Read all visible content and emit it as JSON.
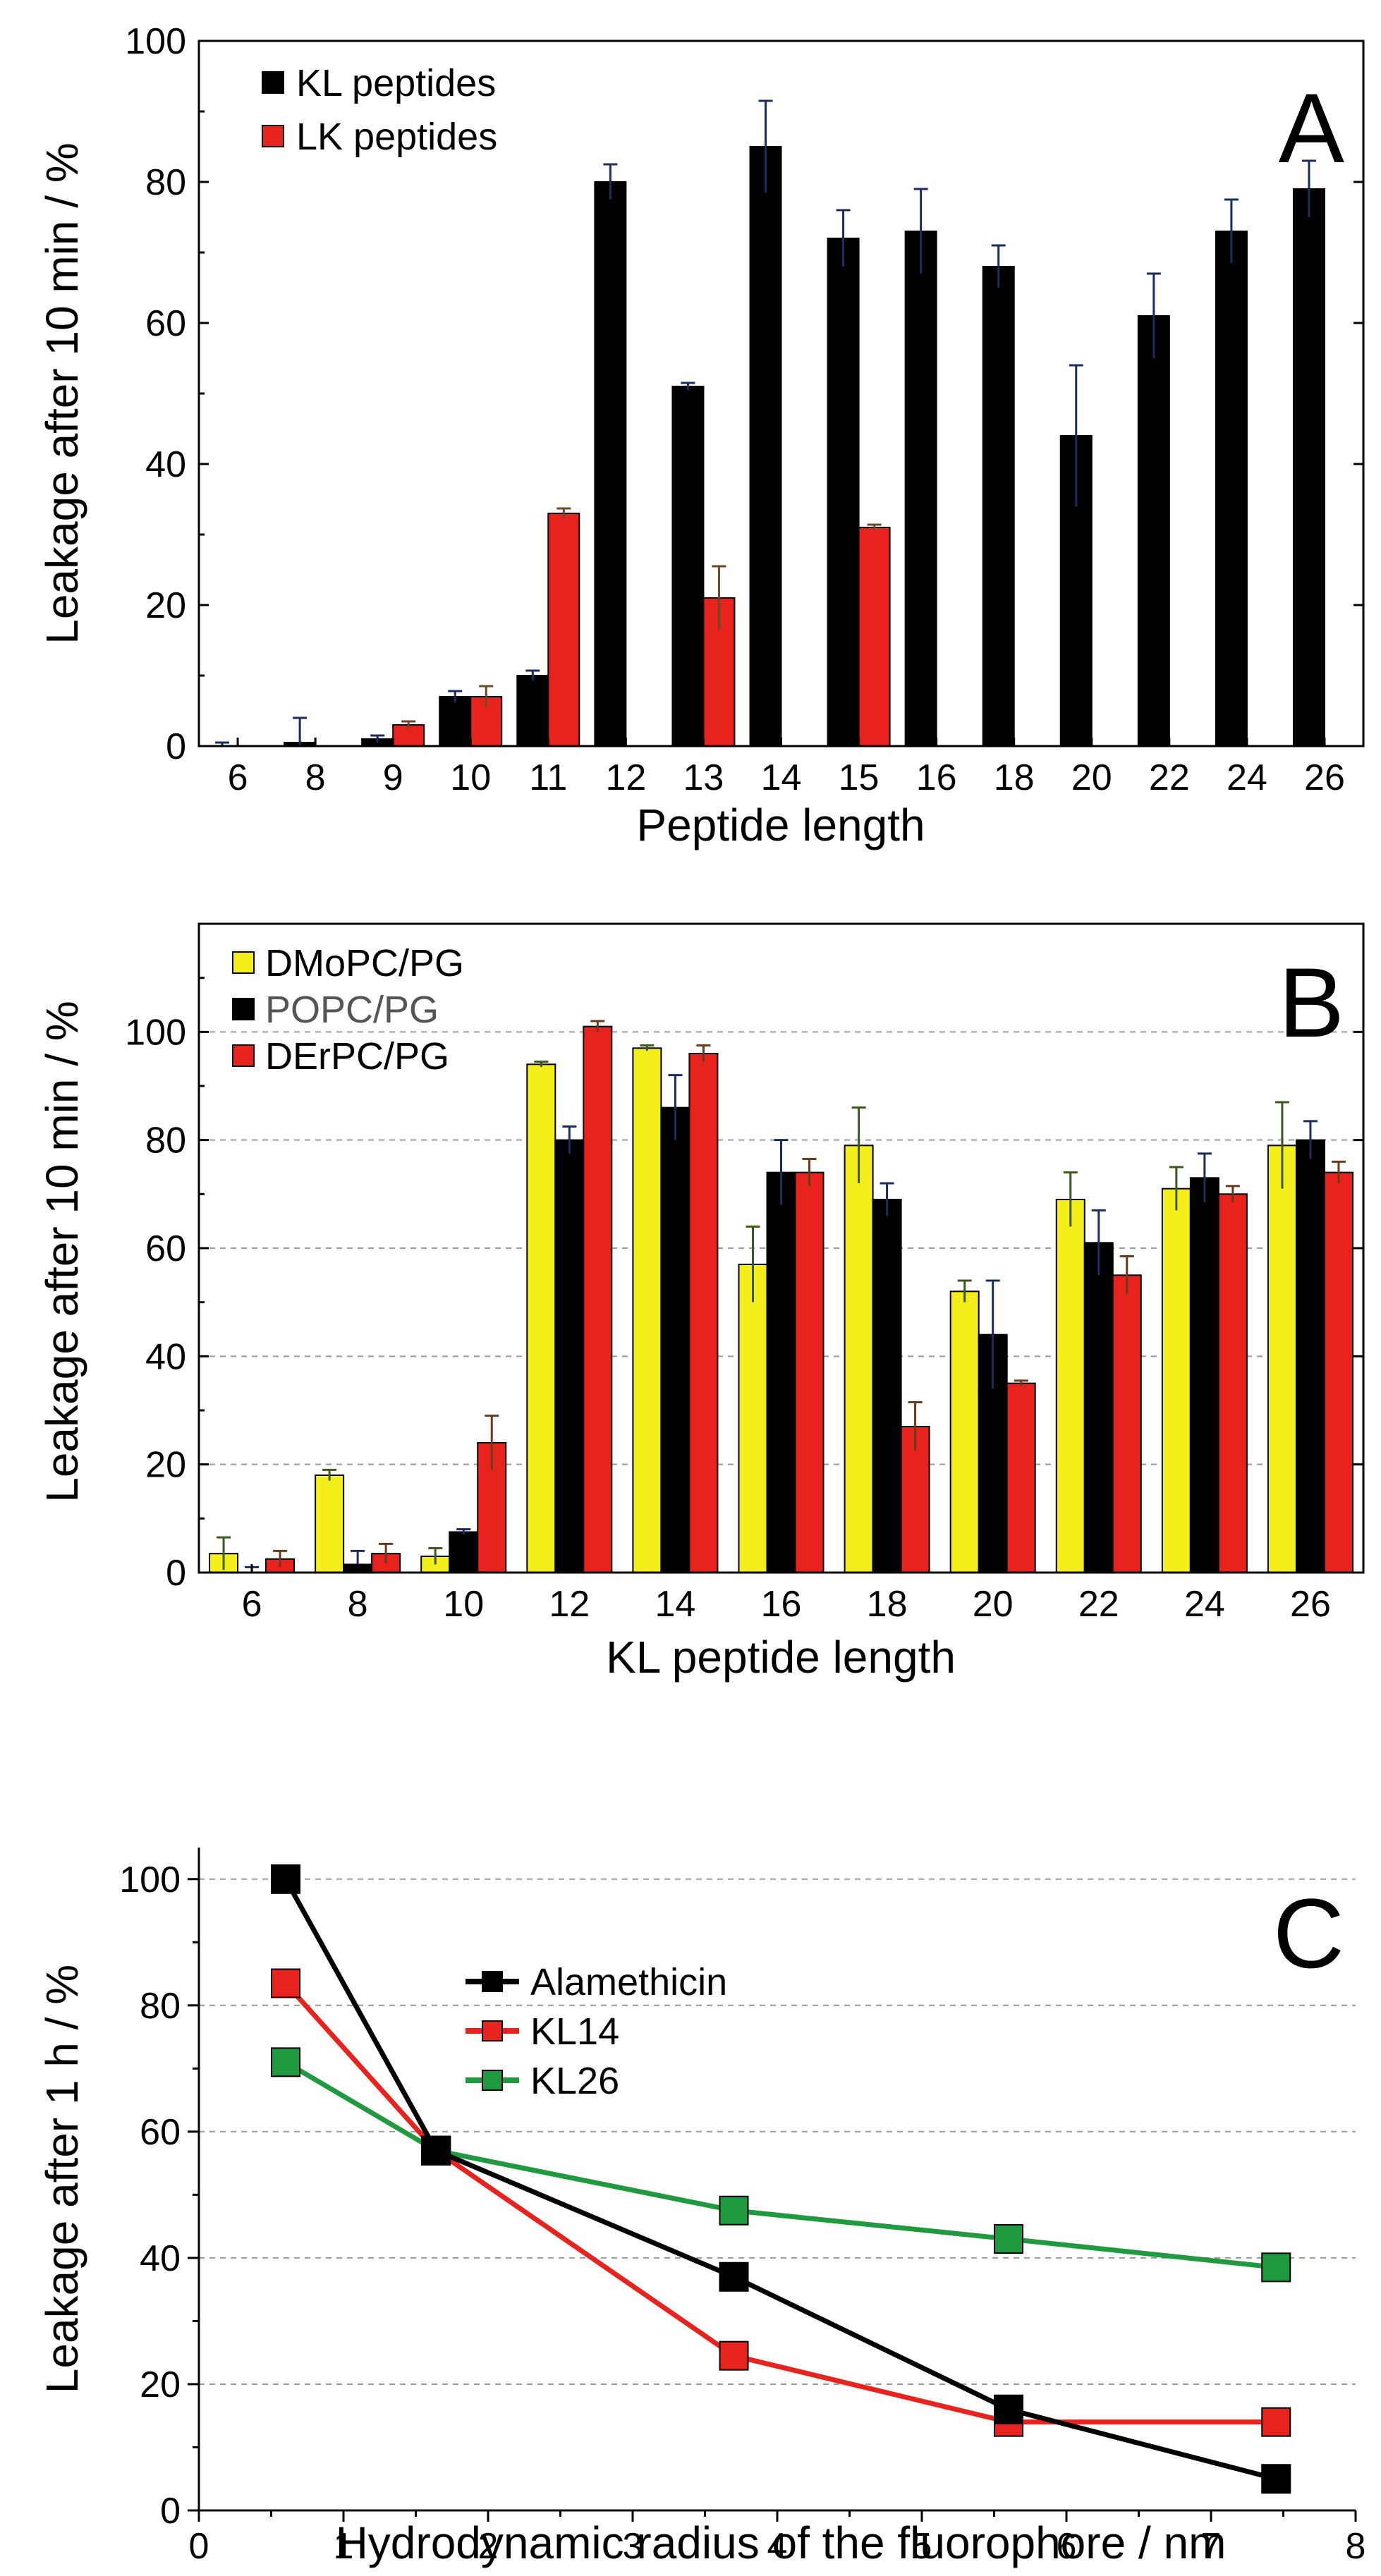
{
  "chart_data": [
    {
      "type": "bar",
      "panel": "A",
      "xlabel": "Peptide length",
      "ylabel": "Leakage after 10 min / %",
      "ylim": [
        0,
        100
      ],
      "yticks": [
        0,
        20,
        40,
        60,
        80,
        100
      ],
      "grid": false,
      "legend_position": "top-left",
      "categories": [
        "6",
        "8",
        "9",
        "10",
        "11",
        "12",
        "13",
        "14",
        "15",
        "16",
        "18",
        "20",
        "22",
        "24",
        "26"
      ],
      "series": [
        {
          "name": "KL peptides",
          "color": "#000000",
          "error_color": "#1c2c5e",
          "values": [
            0,
            0.5,
            1,
            7,
            10,
            80,
            51,
            85,
            72,
            73,
            68,
            44,
            61,
            73,
            79
          ],
          "errors": [
            0.5,
            3.5,
            0.5,
            0.8,
            0.7,
            2.5,
            0.5,
            6.5,
            4,
            6,
            3,
            10,
            6,
            4.5,
            4
          ]
        },
        {
          "name": "LK peptides",
          "color": "#e8231e",
          "error_color": "#6a4a2a",
          "values": [
            null,
            null,
            3,
            7,
            33,
            null,
            21,
            null,
            31,
            null,
            null,
            null,
            null,
            null,
            null
          ],
          "errors": [
            null,
            null,
            0.5,
            1.5,
            0.7,
            null,
            4.5,
            null,
            0.4,
            null,
            null,
            null,
            null,
            null,
            null
          ]
        }
      ]
    },
    {
      "type": "bar",
      "panel": "B",
      "xlabel": "KL peptide length",
      "ylabel": "Leakage after 10 min / %",
      "ylim": [
        0,
        120
      ],
      "yticks": [
        0,
        20,
        40,
        60,
        80,
        100
      ],
      "grid": true,
      "legend_position": "top-left",
      "categories": [
        "6",
        "8",
        "10",
        "12",
        "14",
        "16",
        "18",
        "20",
        "22",
        "24",
        "26"
      ],
      "series": [
        {
          "name": "DMoPC/PG",
          "color": "#f4ef1b",
          "error_color": "#3d5a1e",
          "values": [
            3.5,
            18,
            3,
            94,
            97,
            57,
            79,
            52,
            69,
            71,
            79
          ],
          "errors": [
            3,
            1,
            1.5,
            0.5,
            0.5,
            7,
            7,
            2,
            5,
            4,
            8
          ]
        },
        {
          "name": "POPC/PG",
          "color": "#000000",
          "error_color": "#1c2c5e",
          "values": [
            0,
            1.5,
            7.5,
            80,
            86,
            74,
            69,
            44,
            61,
            73,
            80
          ],
          "errors": [
            1,
            2.5,
            0.5,
            2.5,
            6,
            6,
            3,
            10,
            6,
            4.5,
            3.5
          ]
        },
        {
          "name": "DErPC/PG",
          "color": "#e8231e",
          "error_color": "#6a3a1a",
          "values": [
            2.5,
            3.5,
            24,
            101,
            96,
            74,
            27,
            35,
            55,
            70,
            74
          ],
          "errors": [
            1.5,
            1.8,
            5,
            1,
            1.5,
            2.5,
            4.5,
            0.5,
            3.5,
            1.5,
            2
          ]
        }
      ]
    },
    {
      "type": "line",
      "panel": "C",
      "xlabel": "Hydrodynamic radius of the fluorophore / nm",
      "ylabel": "Leakage after 1 h / %",
      "xlim": [
        0,
        8
      ],
      "ylim": [
        0,
        105
      ],
      "xticks": [
        0,
        1,
        2,
        3,
        4,
        5,
        6,
        7,
        8
      ],
      "yticks": [
        0,
        20,
        40,
        60,
        80,
        100
      ],
      "grid": true,
      "legend_position": "top-center",
      "x": [
        0.6,
        1.64,
        3.7,
        5.6,
        7.45
      ],
      "series": [
        {
          "name": "Alamethicin",
          "color": "#000000",
          "values": [
            100,
            57,
            37,
            16,
            5
          ]
        },
        {
          "name": "KL14",
          "color": "#e8231e",
          "values": [
            83.5,
            57,
            24.5,
            14,
            14
          ]
        },
        {
          "name": "KL26",
          "color": "#1f9a3e",
          "values": [
            71,
            57,
            47.5,
            43,
            38.5
          ]
        }
      ]
    }
  ],
  "panel_labels": {
    "a": "A",
    "b": "B",
    "c": "C"
  }
}
